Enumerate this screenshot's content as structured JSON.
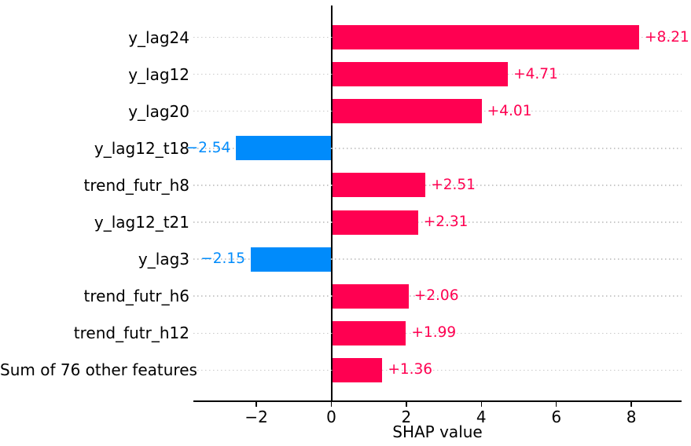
{
  "chart_data": {
    "type": "bar",
    "orientation": "horizontal",
    "xlabel": "SHAP value",
    "categories": [
      "y_lag24",
      "y_lag12",
      "y_lag20",
      "y_lag12_t18",
      "trend_futr_h8",
      "y_lag12_t21",
      "y_lag3",
      "trend_futr_h6",
      "trend_futr_h12",
      "Sum of 76 other features"
    ],
    "values": [
      8.21,
      4.71,
      4.01,
      -2.54,
      2.51,
      2.31,
      -2.15,
      2.06,
      1.99,
      1.36
    ],
    "value_labels": [
      "+8.21",
      "+4.71",
      "+4.01",
      "−2.54",
      "+2.51",
      "+2.31",
      "−2.15",
      "+2.06",
      "+1.99",
      "+1.36"
    ],
    "x_ticks": [
      -2,
      0,
      2,
      4,
      6,
      8
    ],
    "x_tick_labels": [
      "−2",
      "0",
      "2",
      "4",
      "6",
      "8"
    ],
    "xlim": [
      -3.68,
      9.34
    ],
    "grid": {
      "horizontal_dotted": true,
      "color": "#c9c9c9"
    },
    "legend": "none",
    "colors": {
      "positive_bar": "#ff0051",
      "negative_bar": "#008bfb",
      "positive_text": "#ff0051",
      "negative_text": "#008bfb",
      "axis": "#000000",
      "label_text": "#000000"
    }
  }
}
